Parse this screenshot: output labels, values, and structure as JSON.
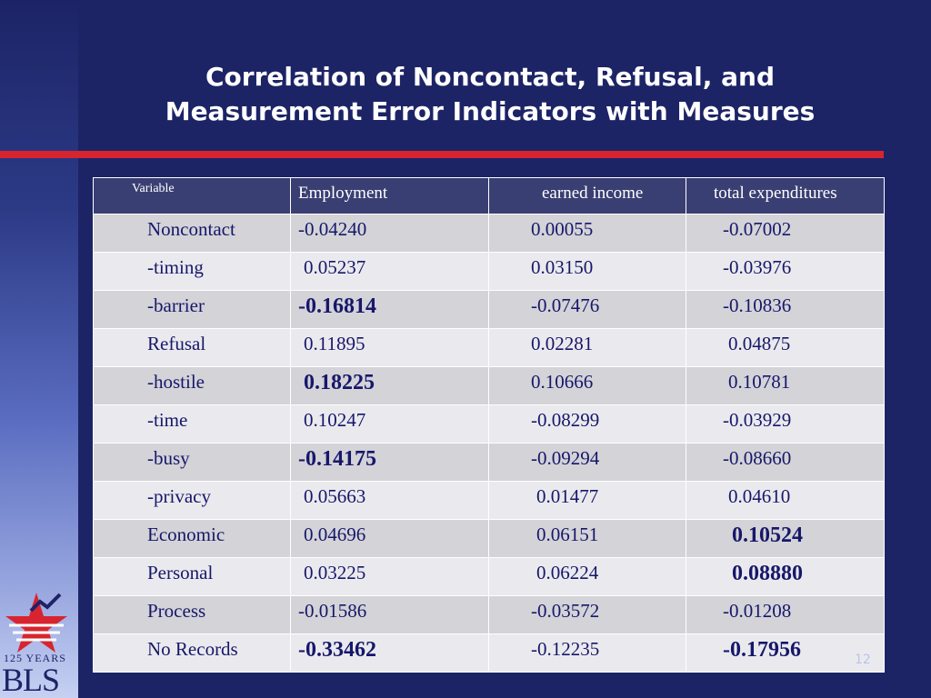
{
  "slide": {
    "title_line1": "Correlation of Noncontact, Refusal, and",
    "title_line2": "Measurement Error Indicators with Measures",
    "page_number": "12"
  },
  "logo": {
    "years": "125 YEARS",
    "name": "BLS"
  },
  "table": {
    "headers": [
      "Variable",
      "Employment",
      "earned income",
      "total expenditures"
    ],
    "rows": [
      {
        "variable": "Noncontact",
        "employment": "-0.04240",
        "earned_income": "0.00055",
        "total_expenditures": "-0.07002"
      },
      {
        "variable": "-timing",
        "employment": "0.05237",
        "earned_income": "0.03150",
        "total_expenditures": "-0.03976"
      },
      {
        "variable": "-barrier",
        "employment": "-0.16814",
        "earned_income": "-0.07476",
        "total_expenditures": "-0.10836"
      },
      {
        "variable": "Refusal",
        "employment": "0.11895",
        "earned_income": "0.02281",
        "total_expenditures": "0.04875"
      },
      {
        "variable": "-hostile",
        "employment": "0.18225",
        "earned_income": "0.10666",
        "total_expenditures": "0.10781"
      },
      {
        "variable": "-time",
        "employment": "0.10247",
        "earned_income": "-0.08299",
        "total_expenditures": "-0.03929"
      },
      {
        "variable": "-busy",
        "employment": "-0.14175",
        "earned_income": "-0.09294",
        "total_expenditures": "-0.08660"
      },
      {
        "variable": "-privacy",
        "employment": "0.05663",
        "earned_income": "0.01477",
        "total_expenditures": "0.04610"
      },
      {
        "variable": "Economic",
        "employment": "0.04696",
        "earned_income": "0.06151",
        "total_expenditures": "0.10524"
      },
      {
        "variable": "Personal",
        "employment": "0.03225",
        "earned_income": "0.06224",
        "total_expenditures": "0.08880"
      },
      {
        "variable": "Process",
        "employment": "-0.01586",
        "earned_income": "-0.03572",
        "total_expenditures": "-0.01208"
      },
      {
        "variable": "No Records",
        "employment": "-0.33462",
        "earned_income": "-0.12235",
        "total_expenditures": "-0.17956"
      }
    ]
  },
  "colors": {
    "background": "#1c2466",
    "accent_rule": "#d8242f",
    "header_fill": "#3a3f73",
    "row_fill_dark": "#d3d3d8",
    "row_fill_light": "#eaeaee",
    "cell_text": "#17176a"
  }
}
